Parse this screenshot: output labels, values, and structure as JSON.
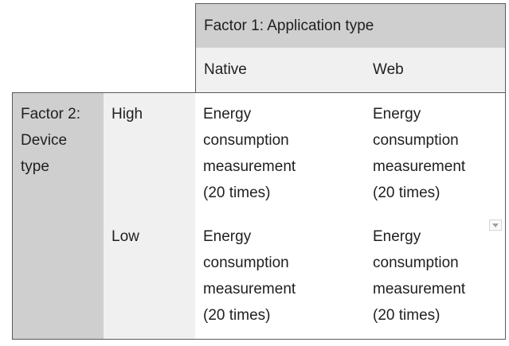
{
  "table": {
    "factor1_header": "Factor 1: Application type",
    "factor1_levels": [
      "Native",
      "Web"
    ],
    "factor2_header": "Factor 2:\nDevice\ntype",
    "factor2_levels": [
      "High",
      "Low"
    ],
    "cells": {
      "high_native": "Energy\nconsumption\nmeasurement\n(20 times)",
      "high_web": "Energy\nconsumption\nmeasurement\n(20 times)",
      "low_native": "Energy\nconsumption\nmeasurement\n(20 times)",
      "low_web": "Energy\nconsumption\nmeasurement\n(20 times)"
    }
  },
  "icons": {
    "cell_dropdown": "chevron-down-icon"
  }
}
